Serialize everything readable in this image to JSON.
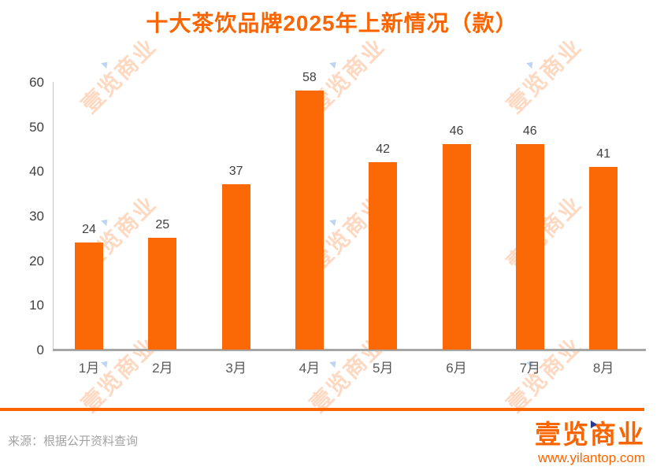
{
  "chart_data": {
    "type": "bar",
    "title": "十大茶饮品牌2025年上新情况（款）",
    "categories": [
      "1月",
      "2月",
      "3月",
      "4月",
      "5月",
      "6月",
      "7月",
      "8月"
    ],
    "values": [
      24,
      25,
      37,
      58,
      42,
      46,
      46,
      41
    ],
    "xlabel": "",
    "ylabel": "",
    "ylim": [
      0,
      60
    ],
    "yticks": [
      0,
      10,
      20,
      30,
      40,
      50,
      60
    ],
    "grid": false,
    "legend": false,
    "bar_color": "#fb6906",
    "title_color": "#fb6500"
  },
  "watermark": {
    "text": "壹览商业"
  },
  "footer": {
    "source": "来源：根据公开资料查询",
    "logo_text": "壹览商业",
    "url": "www.yilantop.com"
  },
  "colors": {
    "accent_orange": "#fb6500",
    "axis_gray": "#a6a6a6",
    "label_gray": "#595959"
  }
}
